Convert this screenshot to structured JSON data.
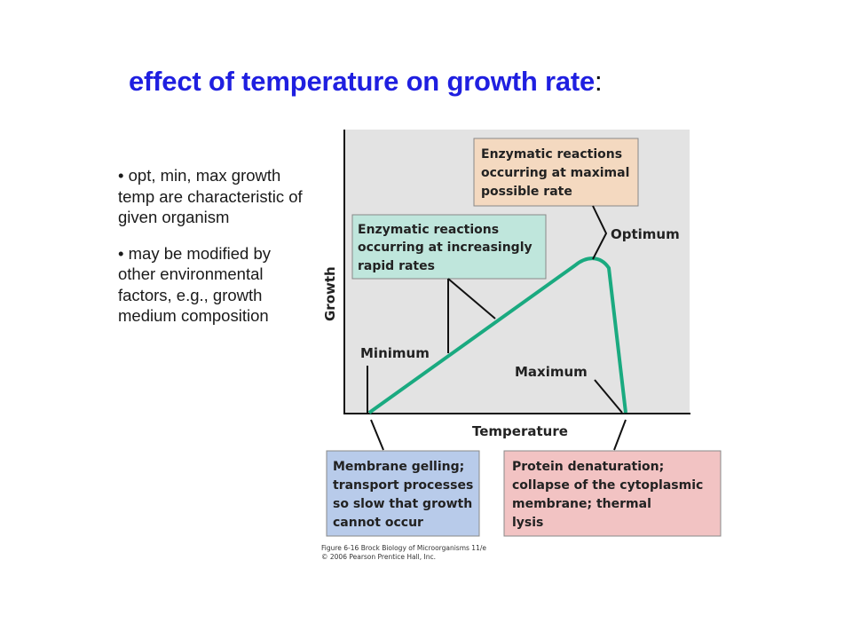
{
  "title": {
    "text": "effect of temperature on growth rate",
    "colon": ":"
  },
  "bullets": [
    "• opt, min, max growth temp are characteristic of given organism",
    "• may be modified by other environmental factors, e.g., growth medium composition"
  ],
  "diagram": {
    "y_axis_label": "Growth",
    "x_axis_label": "Temperature",
    "point_labels": {
      "minimum": "Minimum",
      "optimum": "Optimum",
      "maximum": "Maximum"
    },
    "boxes": {
      "optimal": [
        "Enzymatic reactions",
        "occurring at maximal",
        "possible rate"
      ],
      "increasing": [
        "Enzymatic reactions",
        "occurring at increasingly",
        "rapid rates"
      ],
      "cold": [
        "Membrane gelling;",
        "transport processes",
        "so slow that growth",
        "cannot occur"
      ],
      "heat": [
        "Protein denaturation;",
        "collapse of the cytoplasmic",
        "membrane; thermal",
        "lysis"
      ]
    },
    "caption": [
      "Figure 6-16 Brock Biology of Microorganisms 11/e",
      "© 2006 Pearson Prentice Hall, Inc."
    ],
    "colors": {
      "panel": "#e3e3e3",
      "curve": "#1aaa80",
      "box_optimal": "#f4d9c0",
      "box_increasing": "#bfe6dc",
      "box_cold": "#b8cbea",
      "box_heat": "#f2c3c3"
    }
  }
}
